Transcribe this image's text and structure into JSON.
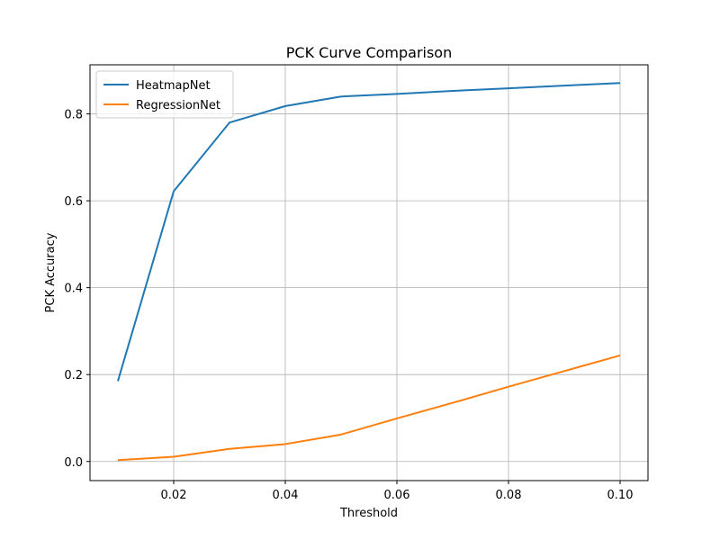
{
  "chart_data": {
    "type": "line",
    "title": "PCK Curve Comparison",
    "xlabel": "Threshold",
    "ylabel": "PCK Accuracy",
    "x": [
      0.01,
      0.02,
      0.03,
      0.04,
      0.05,
      0.06,
      0.07,
      0.08,
      0.09,
      0.1
    ],
    "xlim": [
      0.005,
      0.105
    ],
    "ylim": [
      -0.044,
      0.913
    ],
    "xticks": [
      {
        "value": 0.02,
        "label": "0.02"
      },
      {
        "value": 0.04,
        "label": "0.04"
      },
      {
        "value": 0.06,
        "label": "0.06"
      },
      {
        "value": 0.08,
        "label": "0.08"
      },
      {
        "value": 0.1,
        "label": "0.10"
      }
    ],
    "yticks": [
      {
        "value": 0.0,
        "label": "0.0"
      },
      {
        "value": 0.2,
        "label": "0.2"
      },
      {
        "value": 0.4,
        "label": "0.4"
      },
      {
        "value": 0.6,
        "label": "0.6"
      },
      {
        "value": 0.8,
        "label": "0.8"
      }
    ],
    "grid": true,
    "legend_position": "top-left",
    "series": [
      {
        "name": "HeatmapNet",
        "color": "#1f77b4",
        "values": [
          0.185,
          0.622,
          0.78,
          0.818,
          0.84,
          0.846,
          0.853,
          0.859,
          0.865,
          0.871
        ]
      },
      {
        "name": "RegressionNet",
        "color": "#ff7f0e",
        "values": [
          0.003,
          0.011,
          0.029,
          0.04,
          0.062,
          0.099,
          0.135,
          0.172,
          0.208,
          0.244
        ]
      }
    ]
  }
}
